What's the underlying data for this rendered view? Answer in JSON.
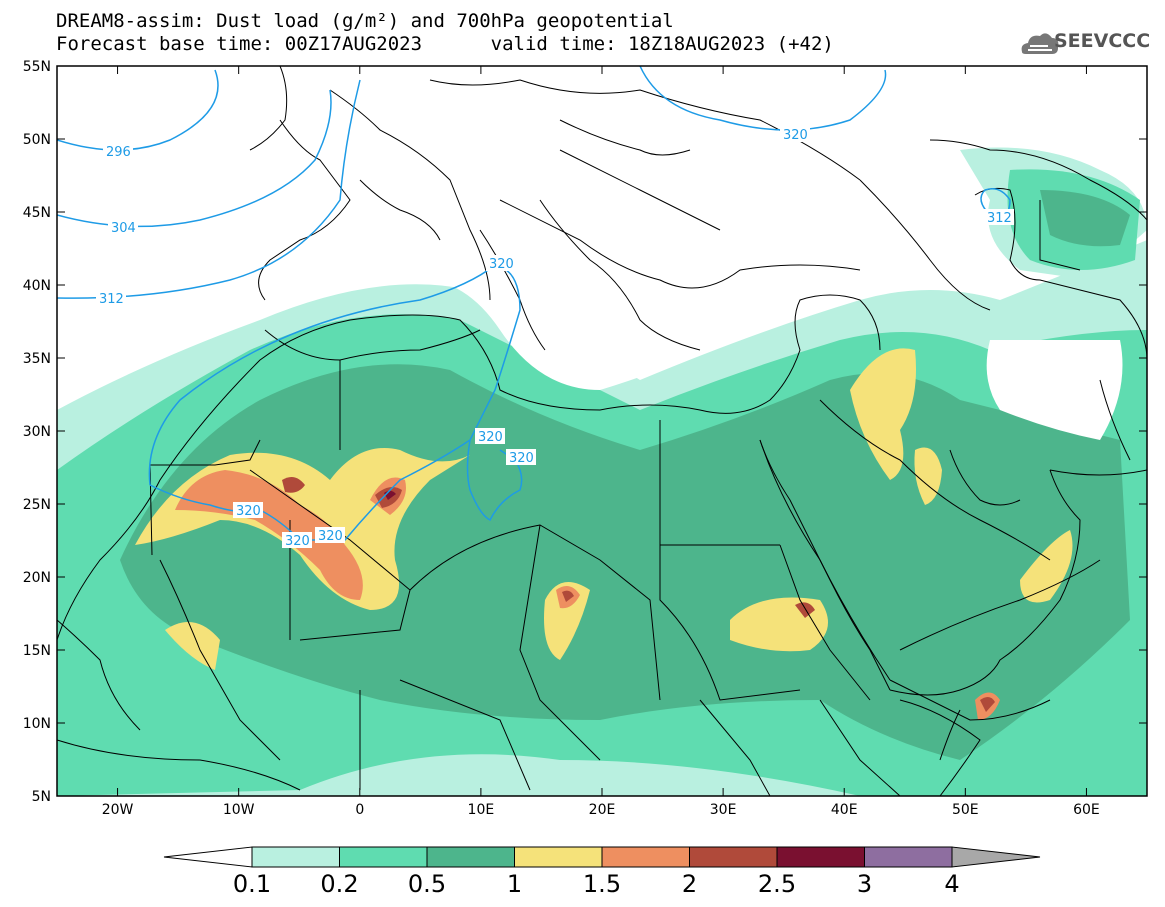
{
  "title": {
    "line1": "DREAM8-assim: Dust load (g/m²) and 700hPa geopotential",
    "line2": "Forecast base time: 00Z17AUG2023      valid time: 18Z18AUG2023 (+42)"
  },
  "logo": {
    "text": "SEEVCCC",
    "icon": "cloud-logo-icon"
  },
  "map_extent": {
    "lon": [
      -25,
      65
    ],
    "lat": [
      5,
      55
    ]
  },
  "lat_ticks": [
    "55N",
    "50N",
    "45N",
    "40N",
    "35N",
    "30N",
    "25N",
    "20N",
    "15N",
    "10N",
    "5N"
  ],
  "lon_ticks": [
    "20W",
    "10W",
    "0",
    "10E",
    "20E",
    "30E",
    "40E",
    "50E",
    "60E"
  ],
  "contour_labels": [
    "296",
    "304",
    "312",
    "320",
    "320",
    "320",
    "320",
    "320",
    "320",
    "312"
  ],
  "colorbar": {
    "labels": [
      "0.1",
      "0.2",
      "0.5",
      "1",
      "1.5",
      "2",
      "2.5",
      "3",
      "4"
    ],
    "colors": [
      "#b9f0e0",
      "#5fdcb0",
      "#4db58c",
      "#f5e27a",
      "#ee8f60",
      "#b04a3a",
      "#7a1030",
      "#8e6ea0"
    ],
    "under_color": "#ffffff",
    "over_color": "#a8a8a8"
  },
  "colors": {
    "contour": "#1e9be6",
    "border": "#000000"
  }
}
